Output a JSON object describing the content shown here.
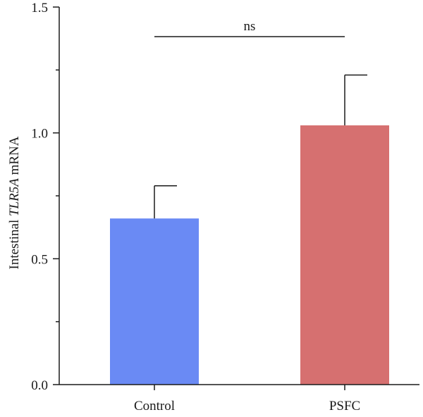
{
  "chart_data": {
    "type": "bar",
    "categories": [
      "Control",
      "PSFC"
    ],
    "values": [
      0.66,
      1.03
    ],
    "errors": [
      0.13,
      0.2
    ],
    "colors": [
      "#6a8af4",
      "#d67070"
    ],
    "ylabel": {
      "prefix": "Intestinal ",
      "gene": "TLR5A",
      "suffix": " mRNA"
    },
    "xlabel": "",
    "ylim": [
      0,
      1.5
    ],
    "yticks": [
      "0.0",
      "0.5",
      "1.0",
      "1.5"
    ],
    "grid": false,
    "significance": {
      "label": "ns",
      "between": [
        "Control",
        "PSFC"
      ]
    }
  }
}
